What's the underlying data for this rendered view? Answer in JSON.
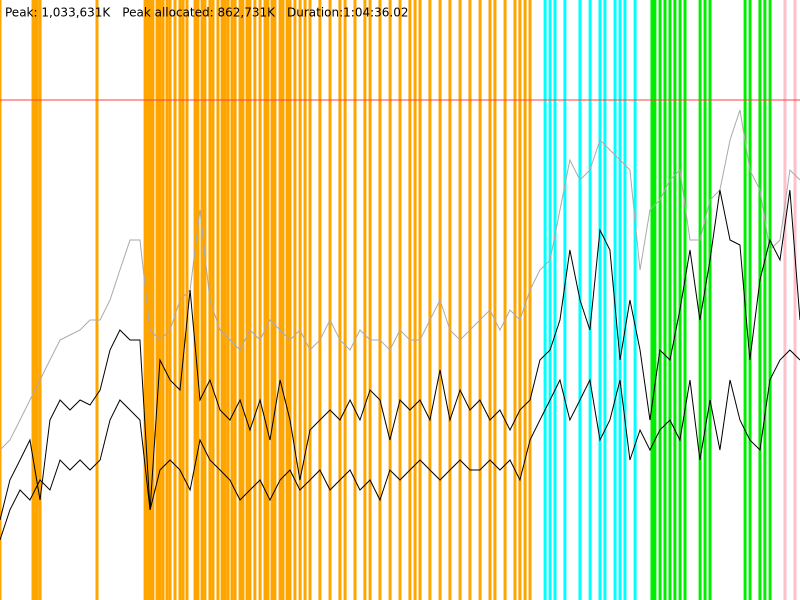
{
  "chart_data": {
    "type": "line",
    "header": [
      "Peak: 1,033,631K",
      "Peak allocated: 862,731K",
      "Duration:1:04:36.02"
    ],
    "xlim": [
      0,
      3876
    ],
    "ylim": [
      0,
      1200000
    ],
    "x": [
      0,
      48,
      97,
      145,
      194,
      242,
      291,
      339,
      388,
      436,
      485,
      533,
      581,
      630,
      678,
      727,
      775,
      824,
      872,
      921,
      969,
      1017,
      1066,
      1114,
      1163,
      1211,
      1260,
      1308,
      1357,
      1405,
      1453,
      1502,
      1550,
      1599,
      1647,
      1696,
      1744,
      1793,
      1841,
      1889,
      1938,
      1986,
      2035,
      2083,
      2132,
      2180,
      2229,
      2277,
      2325,
      2374,
      2422,
      2471,
      2519,
      2568,
      2616,
      2665,
      2713,
      2761,
      2810,
      2858,
      2907,
      2955,
      3004,
      3052,
      3101,
      3149,
      3197,
      3246,
      3294,
      3343,
      3391,
      3440,
      3488,
      3537,
      3585,
      3633,
      3682,
      3730,
      3779,
      3827,
      3876
    ],
    "events": [
      {
        "color": "#ffa500",
        "x": [
          0,
          160,
          170,
          179,
          194,
          470,
          703,
          717,
          727,
          741,
          761,
          775,
          790,
          809,
          824,
          848,
          872,
          887,
          906,
          945,
          959,
          979,
          993,
          1017,
          1032,
          1056,
          1076,
          1090,
          1105,
          1124,
          1139,
          1163,
          1177,
          1197,
          1211,
          1235,
          1260,
          1284,
          1298,
          1318,
          1332,
          1357,
          1371,
          1391,
          1405,
          1429,
          1454,
          1478,
          1502,
          1550,
          1599,
          1647,
          1672,
          1720,
          1768,
          1793,
          1841,
          1890,
          1938,
          1986,
          2011,
          2035,
          2083,
          2132,
          2180,
          2229,
          2277,
          2326,
          2374,
          2398,
          2447,
          2495,
          2519,
          2544,
          2568
        ]
      },
      {
        "color": "#00ffff",
        "x": [
          2641,
          2665,
          2689,
          2737,
          2810,
          2859,
          2907,
          2931,
          2980,
          3004,
          3028,
          3077
        ]
      },
      {
        "color": "#00ee00",
        "x": [
          3159,
          3173,
          3198,
          3222,
          3246,
          3270,
          3295,
          3319,
          3392,
          3416,
          3440,
          3610,
          3634,
          3682,
          3706,
          3731
        ]
      },
      {
        "color": "#ffc0cb",
        "x": [
          3803,
          3852
        ]
      }
    ],
    "series": [
      {
        "color": "#aaaaaa",
        "values": [
          300000,
          320000,
          360000,
          400000,
          440000,
          480000,
          520000,
          530000,
          540000,
          560000,
          560000,
          600000,
          660000,
          720000,
          720000,
          540000,
          520000,
          540000,
          600000,
          620000,
          780000,
          600000,
          540000,
          520000,
          500000,
          540000,
          520000,
          560000,
          540000,
          520000,
          540000,
          500000,
          520000,
          560000,
          520000,
          500000,
          540000,
          520000,
          520000,
          500000,
          540000,
          520000,
          520000,
          560000,
          600000,
          540000,
          520000,
          540000,
          560000,
          580000,
          540000,
          580000,
          560000,
          620000,
          660000,
          680000,
          780000,
          880000,
          840000,
          860000,
          920000,
          900000,
          880000,
          860000,
          660000,
          780000,
          800000,
          840000,
          860000,
          720000,
          720000,
          800000,
          820000,
          920000,
          980000,
          860000,
          820000,
          700000,
          720000,
          860000,
          840000
        ]
      },
      {
        "color": "#000000",
        "values": [
          160000,
          240000,
          280000,
          320000,
          200000,
          360000,
          400000,
          380000,
          400000,
          390000,
          420000,
          500000,
          540000,
          520000,
          520000,
          180000,
          480000,
          440000,
          420000,
          620000,
          400000,
          440000,
          380000,
          360000,
          400000,
          340000,
          400000,
          320000,
          440000,
          360000,
          240000,
          340000,
          360000,
          380000,
          360000,
          400000,
          360000,
          420000,
          400000,
          320000,
          400000,
          380000,
          400000,
          360000,
          460000,
          360000,
          420000,
          380000,
          400000,
          360000,
          380000,
          340000,
          380000,
          400000,
          480000,
          500000,
          560000,
          700000,
          600000,
          540000,
          740000,
          700000,
          480000,
          600000,
          500000,
          360000,
          500000,
          480000,
          580000,
          700000,
          560000,
          680000,
          820000,
          720000,
          710000,
          480000,
          640000,
          720000,
          680000,
          820000,
          560000
        ]
      },
      {
        "color": "#000000",
        "values": [
          120000,
          180000,
          220000,
          200000,
          240000,
          220000,
          280000,
          260000,
          280000,
          260000,
          280000,
          360000,
          400000,
          380000,
          360000,
          180000,
          260000,
          280000,
          260000,
          220000,
          320000,
          280000,
          260000,
          240000,
          200000,
          220000,
          240000,
          200000,
          240000,
          260000,
          220000,
          240000,
          260000,
          220000,
          240000,
          260000,
          220000,
          240000,
          200000,
          260000,
          240000,
          260000,
          280000,
          260000,
          240000,
          260000,
          280000,
          260000,
          260000,
          280000,
          260000,
          280000,
          240000,
          320000,
          360000,
          400000,
          440000,
          360000,
          400000,
          440000,
          320000,
          360000,
          440000,
          280000,
          340000,
          300000,
          340000,
          360000,
          320000,
          440000,
          280000,
          400000,
          300000,
          440000,
          360000,
          320000,
          300000,
          440000,
          480000,
          500000,
          480000
        ]
      }
    ]
  }
}
